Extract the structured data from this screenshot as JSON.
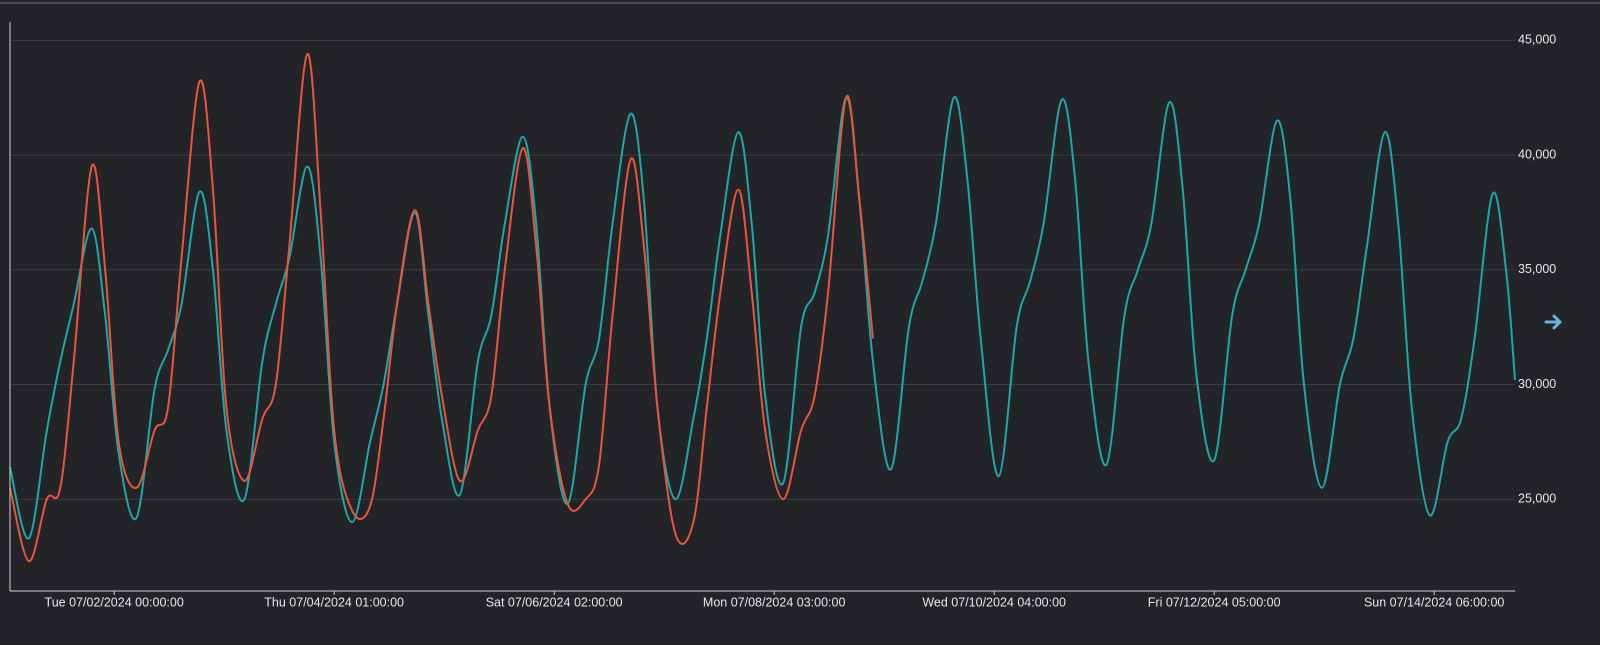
{
  "chart_data": {
    "type": "line",
    "x": [
      "2024-07-01T00:48:00",
      "2024-07-01T05:00:00",
      "2024-07-01T09:00:00",
      "2024-07-01T12:00:00",
      "2024-07-01T15:00:00",
      "2024-07-01T19:00:00",
      "2024-07-01T22:00:00",
      "2024-07-02T01:00:00",
      "2024-07-02T05:00:00",
      "2024-07-02T09:00:00",
      "2024-07-02T12:00:00",
      "2024-07-02T15:00:00",
      "2024-07-02T19:00:00",
      "2024-07-02T22:00:00",
      "2024-07-03T01:00:00",
      "2024-07-03T05:00:00",
      "2024-07-03T09:00:00",
      "2024-07-03T12:00:00",
      "2024-07-03T15:00:00",
      "2024-07-03T19:00:00",
      "2024-07-03T22:00:00",
      "2024-07-04T01:00:00",
      "2024-07-04T05:00:00",
      "2024-07-04T09:00:00",
      "2024-07-04T12:00:00",
      "2024-07-04T15:00:00",
      "2024-07-04T19:00:00",
      "2024-07-04T22:00:00",
      "2024-07-05T01:00:00",
      "2024-07-05T05:00:00",
      "2024-07-05T09:00:00",
      "2024-07-05T12:00:00",
      "2024-07-05T15:00:00",
      "2024-07-05T19:00:00",
      "2024-07-05T22:00:00",
      "2024-07-06T01:00:00",
      "2024-07-06T05:00:00",
      "2024-07-06T09:00:00",
      "2024-07-06T12:00:00",
      "2024-07-06T15:00:00",
      "2024-07-06T19:00:00",
      "2024-07-06T22:00:00",
      "2024-07-07T01:00:00",
      "2024-07-07T05:00:00",
      "2024-07-07T09:00:00",
      "2024-07-07T12:00:00",
      "2024-07-07T15:00:00",
      "2024-07-07T19:00:00",
      "2024-07-07T22:00:00",
      "2024-07-08T01:00:00",
      "2024-07-08T05:00:00",
      "2024-07-08T09:00:00",
      "2024-07-08T12:00:00",
      "2024-07-08T15:00:00",
      "2024-07-08T19:00:00",
      "2024-07-08T22:00:00",
      "2024-07-09T01:00:00",
      "2024-07-09T05:00:00",
      "2024-07-09T09:00:00",
      "2024-07-09T12:00:00",
      "2024-07-09T15:00:00",
      "2024-07-09T19:00:00",
      "2024-07-09T22:00:00",
      "2024-07-10T01:00:00",
      "2024-07-10T05:00:00",
      "2024-07-10T09:00:00",
      "2024-07-10T12:00:00",
      "2024-07-10T15:00:00",
      "2024-07-10T19:00:00",
      "2024-07-10T22:00:00",
      "2024-07-11T01:00:00",
      "2024-07-11T05:00:00",
      "2024-07-11T09:00:00",
      "2024-07-11T12:00:00",
      "2024-07-11T15:00:00",
      "2024-07-11T19:00:00",
      "2024-07-11T22:00:00",
      "2024-07-12T01:00:00",
      "2024-07-12T05:00:00",
      "2024-07-12T09:00:00",
      "2024-07-12T12:00:00",
      "2024-07-12T15:00:00",
      "2024-07-12T19:00:00",
      "2024-07-12T22:00:00",
      "2024-07-13T01:00:00",
      "2024-07-13T05:00:00",
      "2024-07-13T09:00:00",
      "2024-07-13T12:00:00",
      "2024-07-13T15:00:00",
      "2024-07-13T19:00:00",
      "2024-07-13T22:00:00",
      "2024-07-14T01:00:00",
      "2024-07-14T05:00:00",
      "2024-07-14T09:00:00",
      "2024-07-14T12:00:00",
      "2024-07-14T15:00:00",
      "2024-07-14T19:00:00",
      "2024-07-14T22:00:00",
      "2024-07-15T00:00:00"
    ],
    "series": [
      {
        "color": "#1ea6a8",
        "values": [
          26400,
          23300,
          28000,
          31000,
          33500,
          36800,
          33000,
          27000,
          24200,
          29800,
          31500,
          33500,
          38400,
          35000,
          28000,
          25000,
          31000,
          33500,
          35500,
          39500,
          35500,
          27500,
          24000,
          27500,
          30000,
          33500,
          37500,
          33000,
          28500,
          25200,
          31000,
          33000,
          37000,
          40800,
          37000,
          29000,
          24800,
          30000,
          32000,
          37000,
          41800,
          38000,
          29000,
          25000,
          28500,
          32000,
          36500,
          41000,
          37000,
          29500,
          25700,
          32500,
          34000,
          36500,
          42500,
          38000,
          31000,
          26300,
          32500,
          34500,
          37000,
          42500,
          39000,
          32000,
          26000,
          32500,
          34500,
          37000,
          42400,
          39000,
          31000,
          26500,
          33000,
          35000,
          37000,
          42300,
          38500,
          30500,
          26700,
          33000,
          35000,
          37000,
          41500,
          38000,
          30000,
          25500,
          30000,
          32000,
          36000,
          41000,
          37000,
          29000,
          24300,
          27500,
          28500,
          32000,
          38300,
          35000,
          30200
        ]
      },
      {
        "color": "#e8553a",
        "values": [
          25500,
          22300,
          25000,
          25500,
          31000,
          39500,
          35000,
          27500,
          25500,
          28000,
          29000,
          35500,
          43200,
          38500,
          29000,
          25800,
          28500,
          30000,
          36000,
          44400,
          37500,
          28000,
          24500,
          24700,
          28500,
          33500,
          37600,
          33500,
          29500,
          25800,
          28000,
          29500,
          35000,
          40300,
          36000,
          29000,
          24800,
          25000,
          26500,
          33000,
          39800,
          36000,
          29000,
          23500,
          24000,
          29000,
          34000,
          38500,
          34000,
          28000,
          25000,
          28000,
          29500,
          34000,
          42500,
          38000,
          32000,
          null,
          null,
          null,
          null,
          null,
          null,
          null,
          null,
          null,
          null,
          null,
          null,
          null,
          null,
          null,
          null,
          null,
          null,
          null,
          null,
          null,
          null,
          null,
          null,
          null,
          null,
          null,
          null,
          null,
          null,
          null,
          null,
          null,
          null,
          null,
          null,
          null,
          null,
          null,
          null,
          null,
          null
        ]
      }
    ],
    "xlim": [
      "2024-07-01T00:48:00",
      "2024-07-15T00:00:00"
    ],
    "xticks": [
      {
        "value": "2024-07-02T00:00:00",
        "label": "Tue 07/02/2024 00:00:00"
      },
      {
        "value": "2024-07-04T01:00:00",
        "label": "Thu 07/04/2024 01:00:00"
      },
      {
        "value": "2024-07-06T02:00:00",
        "label": "Sat 07/06/2024 02:00:00"
      },
      {
        "value": "2024-07-08T03:00:00",
        "label": "Mon 07/08/2024 03:00:00"
      },
      {
        "value": "2024-07-10T04:00:00",
        "label": "Wed 07/10/2024 04:00:00"
      },
      {
        "value": "2024-07-12T05:00:00",
        "label": "Fri 07/12/2024 05:00:00"
      },
      {
        "value": "2024-07-14T06:00:00",
        "label": "Sun 07/14/2024 06:00:00"
      }
    ],
    "ylim": [
      21000,
      45800
    ],
    "yticks": [
      {
        "value": 25000,
        "label": "25,000"
      },
      {
        "value": 30000,
        "label": "30,000"
      },
      {
        "value": 35000,
        "label": "35,000"
      },
      {
        "value": 40000,
        "label": "40,000"
      },
      {
        "value": 45000,
        "label": "45,000"
      }
    ],
    "grid": true
  }
}
